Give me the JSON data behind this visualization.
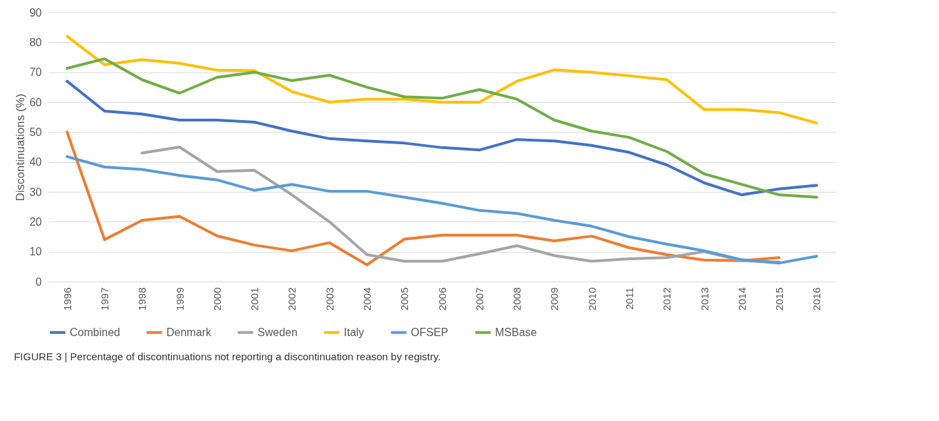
{
  "chart_data": {
    "type": "line",
    "ylabel": "Discontinuations (%)",
    "categories": [
      "1996",
      "1997",
      "1998",
      "1999",
      "2000",
      "2001",
      "2002",
      "2003",
      "2004",
      "2005",
      "2006",
      "2007",
      "2008",
      "2009",
      "2010",
      "2011",
      "2012",
      "2013",
      "2014",
      "2015",
      "2016"
    ],
    "series": [
      {
        "name": "Combined",
        "color": "#4472c4",
        "values": [
          67,
          57,
          56,
          54,
          54,
          53.3,
          50.3,
          47.8,
          47,
          46.3,
          44.8,
          44,
          47.5,
          47,
          45.5,
          43.2,
          39,
          33,
          29,
          31,
          32.2
        ]
      },
      {
        "name": "Denmark",
        "color": "#ed7d31",
        "values": [
          50,
          14,
          20.5,
          21.8,
          15.3,
          12.2,
          10.3,
          13,
          5.6,
          14.2,
          15.5,
          15.5,
          15.5,
          13.6,
          15.2,
          11.3,
          9,
          7.2,
          7,
          8,
          null
        ]
      },
      {
        "name": "Sweden",
        "color": "#a5a5a5",
        "values": [
          null,
          null,
          43,
          45,
          36.8,
          37.2,
          29,
          20,
          9,
          6.8,
          6.8,
          9.3,
          12,
          8.7,
          6.8,
          7.6,
          8,
          10,
          7,
          6.5,
          null
        ]
      },
      {
        "name": "Italy",
        "color": "#ffc000",
        "values": [
          82,
          72.5,
          74.2,
          73,
          70.7,
          70.5,
          63.5,
          60,
          61,
          61,
          60,
          60,
          67,
          70.8,
          70,
          68.8,
          67.5,
          57.5,
          57.5,
          56.5,
          53
        ]
      },
      {
        "name": "OFSEP",
        "color": "#5b9bd5",
        "values": [
          41.8,
          38.3,
          37.5,
          35.5,
          34,
          30.5,
          32.5,
          30.2,
          30.2,
          28.2,
          26.2,
          23.8,
          22.8,
          20.5,
          18.5,
          15,
          12.5,
          10.3,
          7.3,
          6.2,
          8.5
        ]
      },
      {
        "name": "MSBase",
        "color": "#70ad47",
        "values": [
          71.3,
          74.5,
          67.5,
          63,
          68.3,
          70,
          67.2,
          69,
          65,
          61.8,
          61.3,
          64.2,
          61,
          54,
          50.3,
          48.2,
          43.5,
          36,
          32.5,
          29,
          28.2
        ]
      }
    ],
    "ylim": [
      0,
      90
    ],
    "yticks": [
      0,
      10,
      20,
      30,
      40,
      50,
      60,
      70,
      80,
      90
    ],
    "grid": "y",
    "legend": "bottom",
    "line_style": "solid",
    "annotations": [
      "FIGURE 3 | Percentage of discontinuations not reporting a discontinuation reason by registry."
    ]
  }
}
